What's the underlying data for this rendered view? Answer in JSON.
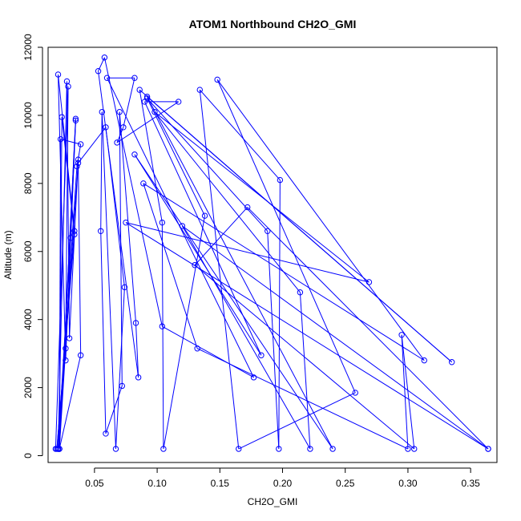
{
  "chart_data": {
    "type": "line",
    "title": "ATOM1 Northbound CH2O_GMI",
    "xlabel": "CH2O_GMI",
    "ylabel": "Altitude (m)",
    "xlim": [
      0.013,
      0.371
    ],
    "ylim": [
      -200,
      12000
    ],
    "xticks": [
      0.05,
      0.1,
      0.15,
      0.2,
      0.25,
      0.3,
      0.35
    ],
    "xtick_labels": [
      "0.05",
      "0.10",
      "0.15",
      "0.20",
      "0.25",
      "0.30",
      "0.35"
    ],
    "yticks": [
      0,
      2000,
      4000,
      6000,
      8000,
      10000,
      12000
    ],
    "ytick_labels": [
      "0",
      "2000",
      "4000",
      "6000",
      "8000",
      "10000",
      "12000"
    ],
    "grid": false,
    "legend": "none",
    "series": [
      {
        "color": "#0000ff",
        "marker": "open-circle",
        "points": [
          {
            "x": 0.019,
            "y": 200
          },
          {
            "x": 0.029,
            "y": 10850
          },
          {
            "x": 0.027,
            "y": 3150
          },
          {
            "x": 0.022,
            "y": 200
          },
          {
            "x": 0.035,
            "y": 9900
          },
          {
            "x": 0.022,
            "y": 200
          },
          {
            "x": 0.024,
            "y": 9950
          },
          {
            "x": 0.034,
            "y": 6500
          },
          {
            "x": 0.02,
            "y": 200
          },
          {
            "x": 0.034,
            "y": 6600
          },
          {
            "x": 0.021,
            "y": 11200
          },
          {
            "x": 0.027,
            "y": 2800
          },
          {
            "x": 0.035,
            "y": 9850
          },
          {
            "x": 0.031,
            "y": 6400
          },
          {
            "x": 0.021,
            "y": 200
          },
          {
            "x": 0.028,
            "y": 11000
          },
          {
            "x": 0.03,
            "y": 3450
          },
          {
            "x": 0.037,
            "y": 8700
          },
          {
            "x": 0.039,
            "y": 2950
          },
          {
            "x": 0.022,
            "y": 200
          },
          {
            "x": 0.023,
            "y": 9300
          },
          {
            "x": 0.039,
            "y": 9150
          },
          {
            "x": 0.036,
            "y": 8500
          },
          {
            "x": 0.021,
            "y": 200
          },
          {
            "x": 0.037,
            "y": 8600
          },
          {
            "x": 0.059,
            "y": 9650
          },
          {
            "x": 0.074,
            "y": 4950
          },
          {
            "x": 0.067,
            "y": 200
          },
          {
            "x": 0.056,
            "y": 10100
          },
          {
            "x": 0.055,
            "y": 6600
          },
          {
            "x": 0.059,
            "y": 650
          },
          {
            "x": 0.072,
            "y": 2050
          },
          {
            "x": 0.07,
            "y": 10100
          },
          {
            "x": 0.083,
            "y": 3900
          },
          {
            "x": 0.085,
            "y": 2300
          },
          {
            "x": 0.053,
            "y": 11300
          },
          {
            "x": 0.058,
            "y": 11700
          },
          {
            "x": 0.104,
            "y": 3800
          },
          {
            "x": 0.177,
            "y": 2300
          },
          {
            "x": 0.06,
            "y": 11100
          },
          {
            "x": 0.082,
            "y": 11100
          },
          {
            "x": 0.073,
            "y": 9650
          },
          {
            "x": 0.068,
            "y": 9200
          },
          {
            "x": 0.117,
            "y": 10400
          },
          {
            "x": 0.09,
            "y": 10400
          },
          {
            "x": 0.183,
            "y": 2950
          },
          {
            "x": 0.082,
            "y": 8850
          },
          {
            "x": 0.24,
            "y": 200
          },
          {
            "x": 0.092,
            "y": 10550
          },
          {
            "x": 0.335,
            "y": 2750
          },
          {
            "x": 0.086,
            "y": 10750
          },
          {
            "x": 0.104,
            "y": 6850
          },
          {
            "x": 0.105,
            "y": 200
          },
          {
            "x": 0.138,
            "y": 7050
          },
          {
            "x": 0.092,
            "y": 10500
          },
          {
            "x": 0.188,
            "y": 6600
          },
          {
            "x": 0.197,
            "y": 200
          },
          {
            "x": 0.198,
            "y": 8100
          },
          {
            "x": 0.134,
            "y": 10750
          },
          {
            "x": 0.165,
            "y": 200
          },
          {
            "x": 0.258,
            "y": 1850
          },
          {
            "x": 0.148,
            "y": 11050
          },
          {
            "x": 0.313,
            "y": 2800
          },
          {
            "x": 0.089,
            "y": 8000
          },
          {
            "x": 0.132,
            "y": 3150
          },
          {
            "x": 0.3,
            "y": 200
          },
          {
            "x": 0.295,
            "y": 3550
          },
          {
            "x": 0.305,
            "y": 200
          },
          {
            "x": 0.13,
            "y": 5600
          },
          {
            "x": 0.172,
            "y": 7300
          },
          {
            "x": 0.364,
            "y": 200
          },
          {
            "x": 0.12,
            "y": 6750
          },
          {
            "x": 0.222,
            "y": 200
          },
          {
            "x": 0.214,
            "y": 4800
          },
          {
            "x": 0.098,
            "y": 10100
          },
          {
            "x": 0.269,
            "y": 5100
          },
          {
            "x": 0.075,
            "y": 6850
          },
          {
            "x": 0.364,
            "y": 200
          }
        ]
      }
    ]
  }
}
